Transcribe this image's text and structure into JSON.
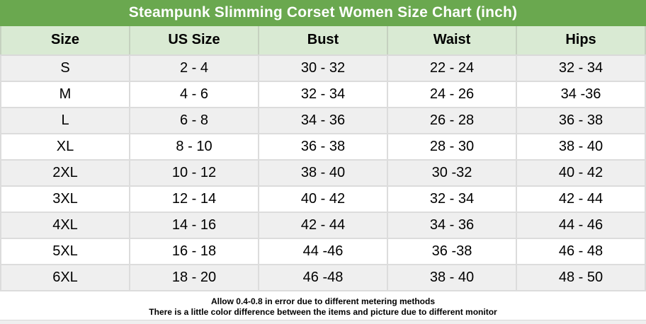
{
  "title": "Steampunk Slimming Corset Women Size Chart (inch)",
  "colors": {
    "title_bar_green": "#6aa84f",
    "header_row_green": "#d9ead3",
    "stripe_row_gray": "#efefef",
    "plain_row_white": "#ffffff",
    "grid_line_gray": "#dcdcdc",
    "header_grid_line": "#c5d1bf",
    "title_text": "#ffffff",
    "body_text": "#000000"
  },
  "chart_data": {
    "type": "table",
    "title": "Steampunk Slimming Corset Women Size Chart (inch)",
    "columns": [
      "Size",
      "US Size",
      "Bust",
      "Waist",
      "Hips"
    ],
    "rows": [
      [
        "S",
        "2 - 4",
        "30 - 32",
        "22 - 24",
        "32 - 34"
      ],
      [
        "M",
        "4 - 6",
        "32 - 34",
        "24 - 26",
        "34 -36"
      ],
      [
        "L",
        "6 - 8",
        "34 - 36",
        "26 - 28",
        "36 - 38"
      ],
      [
        "XL",
        "8 - 10",
        "36 - 38",
        "28 - 30",
        "38 - 40"
      ],
      [
        "2XL",
        "10 - 12",
        "38 - 40",
        "30 -32",
        "40 - 42"
      ],
      [
        "3XL",
        "12 - 14",
        "40 - 42",
        "32 - 34",
        "42 - 44"
      ],
      [
        "4XL",
        "14 - 16",
        "42 - 44",
        "34 - 36",
        "44 - 46"
      ],
      [
        "5XL",
        "16 - 18",
        "44 -46",
        "36 -38",
        "46 - 48"
      ],
      [
        "6XL",
        "18 - 20",
        "46 -48",
        "38 - 40",
        "48 - 50"
      ]
    ]
  },
  "footer": {
    "note1": "Allow 0.4-0.8 in error due to different metering methods",
    "note2": "There is a little color difference between the items and picture due to different monitor"
  }
}
